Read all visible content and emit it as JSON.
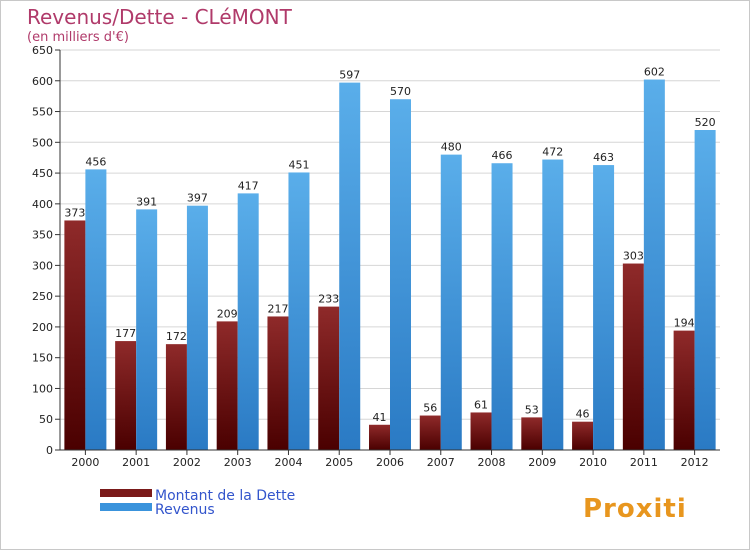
{
  "chart_data": {
    "type": "bar",
    "title": "Revenus/Dette - CLéMONT",
    "subtitle": "(en milliers d'€)",
    "categories": [
      "2000",
      "2001",
      "2002",
      "2003",
      "2004",
      "2005",
      "2006",
      "2007",
      "2008",
      "2009",
      "2010",
      "2011",
      "2012"
    ],
    "series": [
      {
        "name": "Montant de la Dette",
        "color": "#7a1a1a",
        "values": [
          373,
          177,
          172,
          209,
          217,
          233,
          41,
          56,
          61,
          53,
          46,
          303,
          194
        ]
      },
      {
        "name": "Revenus",
        "color": "#3a93dc",
        "values": [
          456,
          391,
          397,
          417,
          451,
          597,
          570,
          480,
          466,
          472,
          463,
          602,
          520
        ]
      }
    ],
    "ylim": [
      0,
      650
    ],
    "yticks": [
      0,
      50,
      100,
      150,
      200,
      250,
      300,
      350,
      400,
      450,
      500,
      550,
      600,
      650
    ],
    "grid": true,
    "legend_position": "bottom-left"
  },
  "branding": {
    "logo_text": "Proxiti"
  },
  "colors": {
    "title": "#b03a6a",
    "legend_text": "#3355cc",
    "axis": "#333333"
  }
}
